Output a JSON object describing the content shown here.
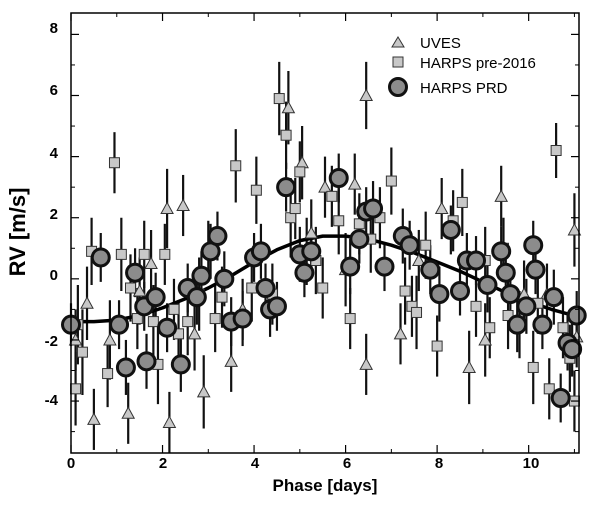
{
  "chart_data": {
    "type": "scatter",
    "xlabel": "Phase [days]",
    "ylabel": "RV [m/s]",
    "xlim": [
      0,
      11.1
    ],
    "ylim": [
      -5.7,
      8.7
    ],
    "xticks": [
      "0",
      "2",
      "4",
      "6",
      "8",
      "10"
    ],
    "yticks": [
      "-4",
      "-2",
      "0",
      "2",
      "4",
      "6",
      "8"
    ],
    "legend_position": "top-right",
    "series": [
      {
        "name": "UVES",
        "marker": "triangle",
        "color": "#c8c8c8",
        "points": [
          {
            "x": 0.1,
            "y": -2.0,
            "err": 1.0
          },
          {
            "x": 0.35,
            "y": -0.8,
            "err": 1.2
          },
          {
            "x": 0.5,
            "y": -4.6,
            "err": 1.0
          },
          {
            "x": 0.85,
            "y": -2.0,
            "err": 1.3
          },
          {
            "x": 1.25,
            "y": -4.4,
            "err": 1.0
          },
          {
            "x": 1.5,
            "y": -0.4,
            "err": 1.1
          },
          {
            "x": 1.75,
            "y": 0.5,
            "err": 1.1
          },
          {
            "x": 2.1,
            "y": 2.3,
            "err": 1.3
          },
          {
            "x": 2.15,
            "y": -4.7,
            "err": 1.0
          },
          {
            "x": 2.45,
            "y": 2.4,
            "err": 1.0
          },
          {
            "x": 2.7,
            "y": -1.8,
            "err": 1.2
          },
          {
            "x": 2.9,
            "y": -3.7,
            "err": 1.2
          },
          {
            "x": 3.5,
            "y": -2.7,
            "err": 1.0
          },
          {
            "x": 3.75,
            "y": -1.0,
            "err": 1.0
          },
          {
            "x": 4.75,
            "y": 5.6,
            "err": 1.2
          },
          {
            "x": 5.05,
            "y": 3.8,
            "err": 1.2
          },
          {
            "x": 5.25,
            "y": 1.5,
            "err": 1.1
          },
          {
            "x": 5.55,
            "y": 3.0,
            "err": 1.0
          },
          {
            "x": 6.0,
            "y": 0.3,
            "err": 1.2
          },
          {
            "x": 6.2,
            "y": 3.1,
            "err": 1.0
          },
          {
            "x": 6.45,
            "y": -2.8,
            "err": 1.0
          },
          {
            "x": 6.45,
            "y": 6.0,
            "err": 1.1
          },
          {
            "x": 7.2,
            "y": -1.8,
            "err": 1.0
          },
          {
            "x": 7.6,
            "y": 0.6,
            "err": 1.0
          },
          {
            "x": 8.1,
            "y": 2.3,
            "err": 1.0
          },
          {
            "x": 8.7,
            "y": -2.9,
            "err": 1.2
          },
          {
            "x": 9.05,
            "y": -2.0,
            "err": 1.2
          },
          {
            "x": 9.4,
            "y": 2.7,
            "err": 1.0
          },
          {
            "x": 9.9,
            "y": -0.5,
            "err": 1.1
          },
          {
            "x": 10.4,
            "y": -0.5,
            "err": 1.0
          },
          {
            "x": 11.0,
            "y": 1.6,
            "err": 1.2
          },
          {
            "x": 11.05,
            "y": -1.9,
            "err": 1.0
          }
        ]
      },
      {
        "name": "HARPS pre-2016",
        "marker": "square",
        "color": "#c8c8c8",
        "points": [
          {
            "x": 0.1,
            "y": -3.6,
            "err": 1.2
          },
          {
            "x": 0.15,
            "y": -1.5,
            "err": 1.3
          },
          {
            "x": 0.25,
            "y": -2.4,
            "err": 1.4
          },
          {
            "x": 0.45,
            "y": 0.9,
            "err": 1.1
          },
          {
            "x": 0.8,
            "y": -3.1,
            "err": 1.1
          },
          {
            "x": 0.95,
            "y": 3.8,
            "err": 1.0
          },
          {
            "x": 1.1,
            "y": 0.8,
            "err": 1.2
          },
          {
            "x": 1.3,
            "y": -0.3,
            "err": 1.1
          },
          {
            "x": 1.45,
            "y": -1.3,
            "err": 1.0
          },
          {
            "x": 1.6,
            "y": 0.8,
            "err": 1.1
          },
          {
            "x": 1.8,
            "y": -1.4,
            "err": 1.2
          },
          {
            "x": 1.9,
            "y": -2.8,
            "err": 1.3
          },
          {
            "x": 2.05,
            "y": 0.8,
            "err": 1.0
          },
          {
            "x": 2.25,
            "y": -1.0,
            "err": 1.0
          },
          {
            "x": 2.35,
            "y": -1.8,
            "err": 1.1
          },
          {
            "x": 2.55,
            "y": -1.4,
            "err": 1.1
          },
          {
            "x": 2.8,
            "y": -0.5,
            "err": 1.2
          },
          {
            "x": 3.0,
            "y": 0.9,
            "err": 1.0
          },
          {
            "x": 3.15,
            "y": -1.3,
            "err": 1.1
          },
          {
            "x": 3.3,
            "y": -0.6,
            "err": 1.0
          },
          {
            "x": 3.6,
            "y": 3.7,
            "err": 1.2
          },
          {
            "x": 3.95,
            "y": -0.3,
            "err": 1.1
          },
          {
            "x": 4.05,
            "y": 2.9,
            "err": 1.1
          },
          {
            "x": 4.4,
            "y": -0.5,
            "err": 1.0
          },
          {
            "x": 4.55,
            "y": 5.9,
            "err": 1.2
          },
          {
            "x": 4.7,
            "y": 4.7,
            "err": 1.1
          },
          {
            "x": 4.8,
            "y": 2.0,
            "err": 1.3
          },
          {
            "x": 4.9,
            "y": 2.3,
            "err": 1.0
          },
          {
            "x": 5.0,
            "y": 3.5,
            "err": 1.0
          },
          {
            "x": 5.15,
            "y": 0.9,
            "err": 1.1
          },
          {
            "x": 5.35,
            "y": 0.6,
            "err": 1.1
          },
          {
            "x": 5.5,
            "y": -0.3,
            "err": 1.0
          },
          {
            "x": 5.7,
            "y": 2.7,
            "err": 1.0
          },
          {
            "x": 5.85,
            "y": 1.9,
            "err": 1.1
          },
          {
            "x": 6.1,
            "y": -1.3,
            "err": 1.0
          },
          {
            "x": 6.3,
            "y": 1.8,
            "err": 1.0
          },
          {
            "x": 6.55,
            "y": 1.3,
            "err": 1.1
          },
          {
            "x": 6.75,
            "y": 2.0,
            "err": 1.0
          },
          {
            "x": 7.0,
            "y": 3.2,
            "err": 1.1
          },
          {
            "x": 7.3,
            "y": -0.4,
            "err": 1.1
          },
          {
            "x": 7.45,
            "y": -0.9,
            "err": 1.0
          },
          {
            "x": 7.55,
            "y": -1.1,
            "err": 1.2
          },
          {
            "x": 7.75,
            "y": 1.1,
            "err": 1.1
          },
          {
            "x": 8.0,
            "y": -2.2,
            "err": 1.0
          },
          {
            "x": 8.35,
            "y": 1.9,
            "err": 1.0
          },
          {
            "x": 8.55,
            "y": 2.5,
            "err": 1.1
          },
          {
            "x": 8.85,
            "y": -0.9,
            "err": 1.0
          },
          {
            "x": 9.05,
            "y": 0.6,
            "err": 1.1
          },
          {
            "x": 9.15,
            "y": -1.6,
            "err": 1.0
          },
          {
            "x": 9.45,
            "y": 1.0,
            "err": 1.0
          },
          {
            "x": 9.55,
            "y": -1.2,
            "err": 1.1
          },
          {
            "x": 9.8,
            "y": -1.5,
            "err": 1.1
          },
          {
            "x": 10.1,
            "y": -2.9,
            "err": 1.2
          },
          {
            "x": 10.2,
            "y": -0.8,
            "err": 1.0
          },
          {
            "x": 10.45,
            "y": -3.6,
            "err": 1.0
          },
          {
            "x": 10.6,
            "y": 4.2,
            "err": 0.9
          },
          {
            "x": 10.75,
            "y": -1.6,
            "err": 1.0
          },
          {
            "x": 10.9,
            "y": -2.6,
            "err": 1.1
          },
          {
            "x": 11.0,
            "y": -4.0,
            "err": 1.0
          }
        ]
      },
      {
        "name": "HARPS PRD",
        "marker": "circle",
        "color": "#8c8c8c",
        "points": [
          {
            "x": 0.0,
            "y": -1.5,
            "err": 0.7
          },
          {
            "x": 0.65,
            "y": 0.7,
            "err": 0.8
          },
          {
            "x": 1.05,
            "y": -1.5,
            "err": 0.8
          },
          {
            "x": 1.2,
            "y": -2.9,
            "err": 0.9
          },
          {
            "x": 1.4,
            "y": 0.2,
            "err": 0.8
          },
          {
            "x": 1.6,
            "y": -0.9,
            "err": 0.8
          },
          {
            "x": 1.65,
            "y": -2.7,
            "err": 0.9
          },
          {
            "x": 1.85,
            "y": -0.6,
            "err": 0.8
          },
          {
            "x": 2.1,
            "y": -1.6,
            "err": 0.8
          },
          {
            "x": 2.4,
            "y": -2.8,
            "err": 0.9
          },
          {
            "x": 2.55,
            "y": -0.3,
            "err": 0.8
          },
          {
            "x": 2.75,
            "y": -0.6,
            "err": 0.9
          },
          {
            "x": 2.85,
            "y": 0.1,
            "err": 0.8
          },
          {
            "x": 3.05,
            "y": 0.9,
            "err": 0.9
          },
          {
            "x": 3.2,
            "y": 1.4,
            "err": 0.8
          },
          {
            "x": 3.35,
            "y": 0.0,
            "err": 0.9
          },
          {
            "x": 3.5,
            "y": -1.4,
            "err": 0.8
          },
          {
            "x": 3.75,
            "y": -1.3,
            "err": 0.9
          },
          {
            "x": 4.0,
            "y": 0.7,
            "err": 0.8
          },
          {
            "x": 4.15,
            "y": 0.9,
            "err": 0.9
          },
          {
            "x": 4.25,
            "y": -0.3,
            "err": 0.8
          },
          {
            "x": 4.35,
            "y": -1.0,
            "err": 0.9
          },
          {
            "x": 4.5,
            "y": -0.9,
            "err": 0.8
          },
          {
            "x": 4.7,
            "y": 3.0,
            "err": 0.8
          },
          {
            "x": 5.0,
            "y": 0.8,
            "err": 0.9
          },
          {
            "x": 5.1,
            "y": 0.2,
            "err": 0.8
          },
          {
            "x": 5.25,
            "y": 0.9,
            "err": 0.8
          },
          {
            "x": 5.85,
            "y": 3.3,
            "err": 0.8
          },
          {
            "x": 6.1,
            "y": 0.4,
            "err": 0.9
          },
          {
            "x": 6.3,
            "y": 1.3,
            "err": 0.8
          },
          {
            "x": 6.45,
            "y": 2.2,
            "err": 0.8
          },
          {
            "x": 6.6,
            "y": 2.3,
            "err": 0.9
          },
          {
            "x": 6.85,
            "y": 0.4,
            "err": 0.8
          },
          {
            "x": 7.25,
            "y": 1.4,
            "err": 0.9
          },
          {
            "x": 7.4,
            "y": 1.1,
            "err": 0.8
          },
          {
            "x": 7.85,
            "y": 0.3,
            "err": 0.8
          },
          {
            "x": 8.05,
            "y": -0.5,
            "err": 0.9
          },
          {
            "x": 8.3,
            "y": 1.6,
            "err": 0.8
          },
          {
            "x": 8.5,
            "y": -0.4,
            "err": 0.8
          },
          {
            "x": 8.65,
            "y": 0.6,
            "err": 0.9
          },
          {
            "x": 8.85,
            "y": 0.6,
            "err": 0.8
          },
          {
            "x": 9.1,
            "y": -0.2,
            "err": 0.9
          },
          {
            "x": 9.4,
            "y": 0.9,
            "err": 0.8
          },
          {
            "x": 9.5,
            "y": 0.2,
            "err": 0.8
          },
          {
            "x": 9.6,
            "y": -0.5,
            "err": 0.8
          },
          {
            "x": 9.75,
            "y": -1.5,
            "err": 0.9
          },
          {
            "x": 9.95,
            "y": -0.9,
            "err": 0.9
          },
          {
            "x": 10.1,
            "y": 1.1,
            "err": 0.8
          },
          {
            "x": 10.15,
            "y": 0.3,
            "err": 0.8
          },
          {
            "x": 10.3,
            "y": -1.5,
            "err": 0.8
          },
          {
            "x": 10.55,
            "y": -0.6,
            "err": 0.9
          },
          {
            "x": 10.7,
            "y": -3.9,
            "err": 0.8
          },
          {
            "x": 10.85,
            "y": -2.1,
            "err": 0.9
          },
          {
            "x": 10.95,
            "y": -2.3,
            "err": 0.9
          },
          {
            "x": 11.05,
            "y": -1.2,
            "err": 0.8
          }
        ]
      }
    ],
    "fit_curve": {
      "style": "solid-black-thick",
      "points": [
        {
          "x": 0.0,
          "y": -1.4
        },
        {
          "x": 0.5,
          "y": -1.4
        },
        {
          "x": 1.0,
          "y": -1.35
        },
        {
          "x": 1.5,
          "y": -1.2
        },
        {
          "x": 2.0,
          "y": -0.95
        },
        {
          "x": 2.5,
          "y": -0.65
        },
        {
          "x": 3.0,
          "y": -0.3
        },
        {
          "x": 3.5,
          "y": 0.1
        },
        {
          "x": 4.0,
          "y": 0.55
        },
        {
          "x": 4.5,
          "y": 0.95
        },
        {
          "x": 5.0,
          "y": 1.25
        },
        {
          "x": 5.5,
          "y": 1.4
        },
        {
          "x": 6.0,
          "y": 1.4
        },
        {
          "x": 6.5,
          "y": 1.3
        },
        {
          "x": 7.0,
          "y": 1.1
        },
        {
          "x": 7.5,
          "y": 0.85
        },
        {
          "x": 8.0,
          "y": 0.55
        },
        {
          "x": 8.5,
          "y": 0.25
        },
        {
          "x": 9.0,
          "y": -0.1
        },
        {
          "x": 9.5,
          "y": -0.45
        },
        {
          "x": 10.0,
          "y": -0.75
        },
        {
          "x": 10.5,
          "y": -1.0
        },
        {
          "x": 11.1,
          "y": -1.25
        }
      ]
    }
  }
}
